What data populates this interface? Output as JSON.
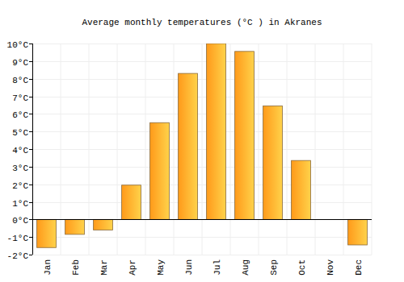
{
  "chart_data": {
    "type": "bar",
    "title": "Average monthly temperatures (°C ) in Akranes",
    "categories": [
      "Jan",
      "Feb",
      "Mar",
      "Apr",
      "May",
      "Jun",
      "Jul",
      "Aug",
      "Sep",
      "Oct",
      "Nov",
      "Dec"
    ],
    "values": [
      -1.6,
      -0.85,
      -0.6,
      1.95,
      5.5,
      8.3,
      10,
      9.55,
      6.45,
      3.35,
      null,
      -1.45
    ],
    "color": "#ff9a1a",
    "ylim": [
      -2,
      10
    ],
    "yticks": [
      {
        "value": -2,
        "label": "-2°C"
      },
      {
        "value": -1,
        "label": "-1°C"
      },
      {
        "value": 0,
        "label": "0°C"
      },
      {
        "value": 1,
        "label": "1°C"
      },
      {
        "value": 2,
        "label": "2°C"
      },
      {
        "value": 3,
        "label": "3°C"
      },
      {
        "value": 4,
        "label": "4°C"
      },
      {
        "value": 5,
        "label": "5°C"
      },
      {
        "value": 6,
        "label": "6°C"
      },
      {
        "value": 7,
        "label": "7°C"
      },
      {
        "value": 8,
        "label": "8°C"
      },
      {
        "value": 9,
        "label": "9°C"
      },
      {
        "value": 10,
        "label": "10°C"
      }
    ],
    "grid": true
  }
}
